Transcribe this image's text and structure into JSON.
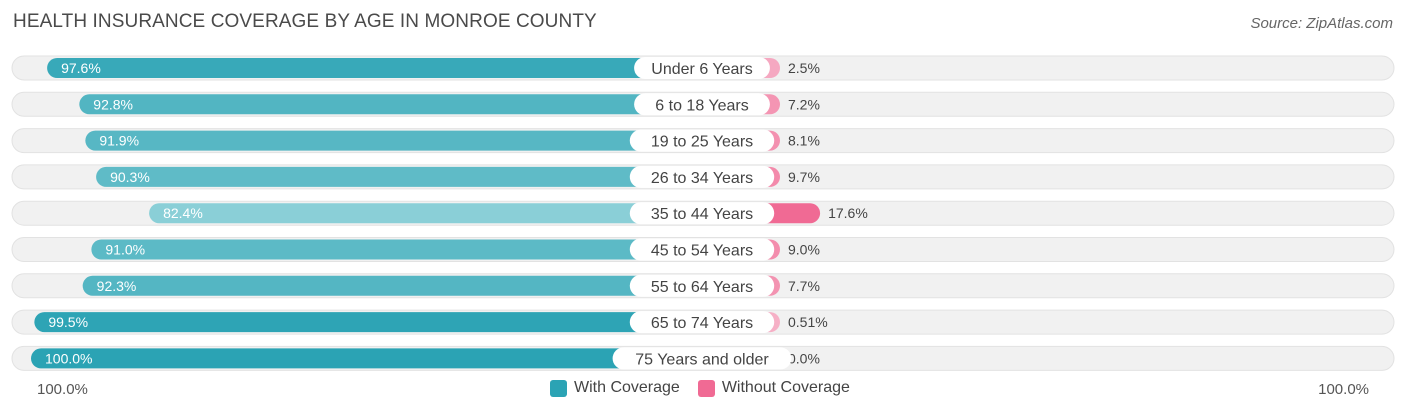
{
  "title": "HEALTH INSURANCE COVERAGE BY AGE IN MONROE COUNTY",
  "source": "Source: ZipAtlas.com",
  "axis": {
    "left_label": "100.0%",
    "right_label": "100.0%"
  },
  "legend": [
    {
      "label": "With Coverage",
      "color": "#2ba3b4"
    },
    {
      "label": "Without Coverage",
      "color": "#f06a94"
    }
  ],
  "chart_data": {
    "type": "bar",
    "orientation": "diverging-horizontal",
    "title": "HEALTH INSURANCE COVERAGE BY AGE IN MONROE COUNTY",
    "categories": [
      "Under 6 Years",
      "6 to 18 Years",
      "19 to 25 Years",
      "26 to 34 Years",
      "35 to 44 Years",
      "45 to 54 Years",
      "55 to 64 Years",
      "65 to 74 Years",
      "75 Years and older"
    ],
    "series": [
      {
        "name": "With Coverage",
        "values": [
          97.6,
          92.8,
          91.9,
          90.3,
          82.4,
          91.0,
          92.3,
          99.5,
          100.0
        ],
        "labels": [
          "97.6%",
          "92.8%",
          "91.9%",
          "90.3%",
          "82.4%",
          "91.0%",
          "92.3%",
          "99.5%",
          "100.0%"
        ]
      },
      {
        "name": "Without Coverage",
        "values": [
          2.5,
          7.2,
          8.1,
          9.7,
          17.6,
          9.0,
          7.7,
          0.51,
          0.0
        ],
        "labels": [
          "2.5%",
          "7.2%",
          "8.1%",
          "9.7%",
          "17.6%",
          "9.0%",
          "7.7%",
          "0.51%",
          "0.0%"
        ]
      }
    ],
    "xlim": [
      0,
      100
    ]
  }
}
